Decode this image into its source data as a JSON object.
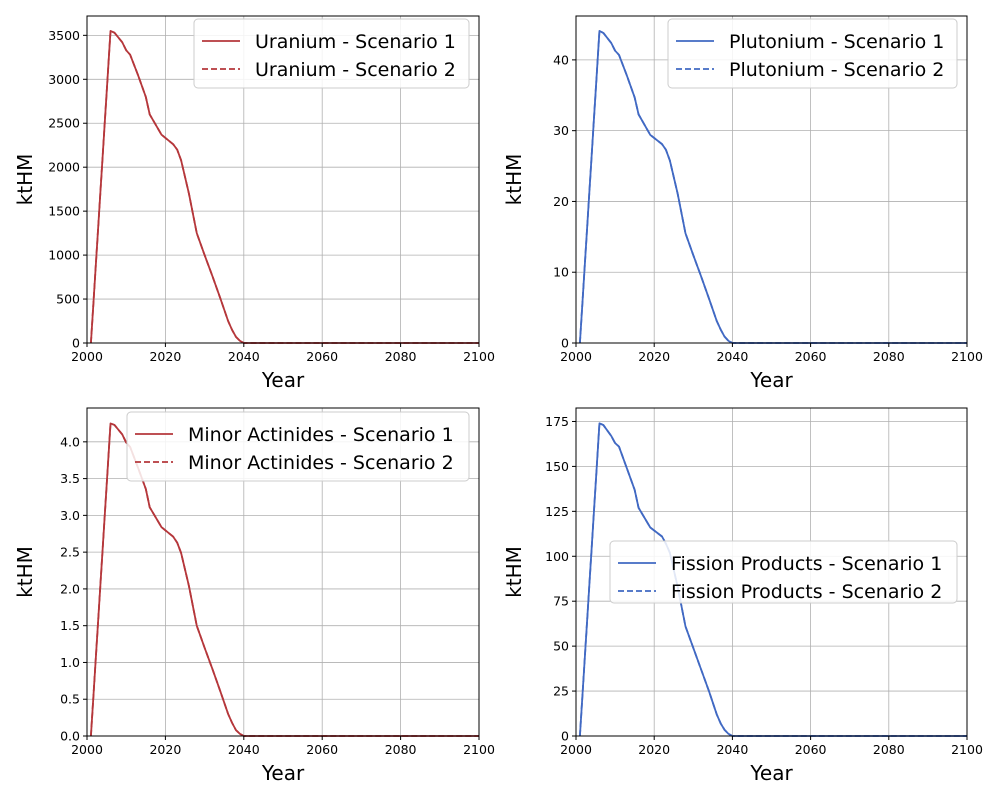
{
  "chart_data": [
    {
      "type": "line",
      "xlabel": "Year",
      "ylabel": "ktHM",
      "xlim": [
        2000,
        2100
      ],
      "ylim": [
        0,
        3720
      ],
      "xticks": [
        2000,
        2020,
        2040,
        2060,
        2080,
        2100
      ],
      "yticks": [
        0,
        500,
        1000,
        1500,
        2000,
        2500,
        3000,
        3500
      ],
      "ytick_labels": [
        "0",
        "500",
        "1000",
        "1500",
        "2000",
        "2500",
        "3000",
        "3500"
      ],
      "grid": true,
      "legend_position": "upper right",
      "series": [
        {
          "name": "Uranium - Scenario 1",
          "style": "solid",
          "color": "#b5373b",
          "x": [
            2001,
            2006,
            2007,
            2009,
            2010,
            2011,
            2013,
            2015,
            2016,
            2019,
            2022,
            2023,
            2024,
            2026,
            2028,
            2030,
            2032,
            2034,
            2036,
            2037,
            2038,
            2039,
            2040,
            2100
          ],
          "y": [
            0,
            3550,
            3530,
            3420,
            3330,
            3280,
            3050,
            2800,
            2600,
            2370,
            2260,
            2200,
            2080,
            1700,
            1250,
            1000,
            760,
            510,
            250,
            150,
            70,
            25,
            0,
            0
          ]
        },
        {
          "name": "Uranium - Scenario 2",
          "style": "dashed",
          "color": "#b5373b",
          "x": [
            2001,
            2006,
            2007,
            2009,
            2010,
            2011,
            2013,
            2015,
            2016,
            2019,
            2022,
            2023,
            2024,
            2026,
            2028,
            2030,
            2032,
            2034,
            2036,
            2037,
            2038,
            2039,
            2040,
            2100
          ],
          "y": [
            0,
            3550,
            3530,
            3420,
            3330,
            3280,
            3050,
            2800,
            2600,
            2370,
            2260,
            2200,
            2080,
            1700,
            1250,
            1000,
            760,
            510,
            250,
            150,
            70,
            25,
            0,
            0
          ]
        }
      ]
    },
    {
      "type": "line",
      "xlabel": "Year",
      "ylabel": "ktHM",
      "xlim": [
        2000,
        2100
      ],
      "ylim": [
        0,
        46.2
      ],
      "xticks": [
        2000,
        2020,
        2040,
        2060,
        2080,
        2100
      ],
      "yticks": [
        0,
        10,
        20,
        30,
        40
      ],
      "ytick_labels": [
        "0",
        "10",
        "20",
        "30",
        "40"
      ],
      "grid": true,
      "legend_position": "upper right",
      "series": [
        {
          "name": "Plutonium - Scenario 1",
          "style": "solid",
          "color": "#4169c3",
          "x": [
            2001,
            2006,
            2007,
            2009,
            2010,
            2011,
            2013,
            2015,
            2016,
            2019,
            2022,
            2023,
            2024,
            2026,
            2028,
            2030,
            2032,
            2034,
            2036,
            2037,
            2038,
            2039,
            2040,
            2100
          ],
          "y": [
            0,
            44.1,
            43.8,
            42.4,
            41.3,
            40.7,
            37.8,
            34.7,
            32.3,
            29.4,
            28.1,
            27.3,
            25.8,
            21.1,
            15.5,
            12.4,
            9.4,
            6.3,
            3.1,
            1.9,
            0.9,
            0.3,
            0,
            0
          ]
        },
        {
          "name": "Plutonium - Scenario 2",
          "style": "dashed",
          "color": "#4169c3",
          "x": [
            2001,
            2006,
            2007,
            2009,
            2010,
            2011,
            2013,
            2015,
            2016,
            2019,
            2022,
            2023,
            2024,
            2026,
            2028,
            2030,
            2032,
            2034,
            2036,
            2037,
            2038,
            2039,
            2040,
            2100
          ],
          "y": [
            0,
            44.1,
            43.8,
            42.4,
            41.3,
            40.7,
            37.8,
            34.7,
            32.3,
            29.4,
            28.1,
            27.3,
            25.8,
            21.1,
            15.5,
            12.4,
            9.4,
            6.3,
            3.1,
            1.9,
            0.9,
            0.3,
            0,
            0
          ]
        }
      ]
    },
    {
      "type": "line",
      "xlabel": "Year",
      "ylabel": "ktHM",
      "xlim": [
        2000,
        2100
      ],
      "ylim": [
        0,
        4.46
      ],
      "xticks": [
        2000,
        2020,
        2040,
        2060,
        2080,
        2100
      ],
      "yticks": [
        0,
        0.5,
        1.0,
        1.5,
        2.0,
        2.5,
        3.0,
        3.5,
        4.0
      ],
      "ytick_labels": [
        "0.0",
        "0.5",
        "1.0",
        "1.5",
        "2.0",
        "2.5",
        "3.0",
        "3.5",
        "4.0"
      ],
      "grid": true,
      "legend_position": "upper right",
      "series": [
        {
          "name": "Minor Actinides - Scenario 1",
          "style": "solid",
          "color": "#b5373b",
          "x": [
            2001,
            2006,
            2007,
            2009,
            2010,
            2011,
            2013,
            2015,
            2016,
            2019,
            2022,
            2023,
            2024,
            2026,
            2028,
            2030,
            2032,
            2034,
            2036,
            2037,
            2038,
            2039,
            2040,
            2100
          ],
          "y": [
            0,
            4.25,
            4.23,
            4.1,
            3.99,
            3.93,
            3.65,
            3.36,
            3.11,
            2.84,
            2.71,
            2.63,
            2.49,
            2.04,
            1.5,
            1.2,
            0.91,
            0.61,
            0.3,
            0.18,
            0.08,
            0.03,
            0,
            0
          ]
        },
        {
          "name": "Minor Actinides - Scenario 2",
          "style": "dashed",
          "color": "#b5373b",
          "x": [
            2001,
            2006,
            2007,
            2009,
            2010,
            2011,
            2013,
            2015,
            2016,
            2019,
            2022,
            2023,
            2024,
            2026,
            2028,
            2030,
            2032,
            2034,
            2036,
            2037,
            2038,
            2039,
            2040,
            2100
          ],
          "y": [
            0,
            4.25,
            4.23,
            4.1,
            3.99,
            3.93,
            3.65,
            3.36,
            3.11,
            2.84,
            2.71,
            2.63,
            2.49,
            2.04,
            1.5,
            1.2,
            0.91,
            0.61,
            0.3,
            0.18,
            0.08,
            0.03,
            0,
            0
          ]
        }
      ]
    },
    {
      "type": "line",
      "xlabel": "Year",
      "ylabel": "ktHM",
      "xlim": [
        2000,
        2100
      ],
      "ylim": [
        0,
        182.5
      ],
      "xticks": [
        2000,
        2020,
        2040,
        2060,
        2080,
        2100
      ],
      "yticks": [
        0,
        25,
        50,
        75,
        100,
        125,
        150,
        175
      ],
      "ytick_labels": [
        "0",
        "25",
        "50",
        "75",
        "100",
        "125",
        "150",
        "175"
      ],
      "grid": true,
      "legend_position": "center right",
      "series": [
        {
          "name": "Fission Products - Scenario 1",
          "style": "solid",
          "color": "#4169c3",
          "x": [
            2001,
            2006,
            2007,
            2009,
            2010,
            2011,
            2013,
            2015,
            2016,
            2019,
            2022,
            2023,
            2024,
            2026,
            2028,
            2030,
            2032,
            2034,
            2036,
            2037,
            2038,
            2039,
            2040,
            2100
          ],
          "y": [
            0,
            174,
            173,
            167,
            163,
            161,
            149,
            137,
            127,
            116,
            111,
            107,
            102,
            83,
            61,
            49,
            37,
            25,
            12,
            7,
            3.4,
            1.2,
            0,
            0
          ]
        },
        {
          "name": "Fission Products - Scenario 2",
          "style": "dashed",
          "color": "#4169c3",
          "x": [
            2001,
            2006,
            2007,
            2009,
            2010,
            2011,
            2013,
            2015,
            2016,
            2019,
            2022,
            2023,
            2024,
            2026,
            2028,
            2030,
            2032,
            2034,
            2036,
            2037,
            2038,
            2039,
            2040,
            2100
          ],
          "y": [
            0,
            174,
            173,
            167,
            163,
            161,
            149,
            137,
            127,
            116,
            111,
            107,
            102,
            83,
            61,
            49,
            37,
            25,
            12,
            7,
            3.4,
            1.2,
            0,
            0
          ]
        }
      ]
    }
  ]
}
